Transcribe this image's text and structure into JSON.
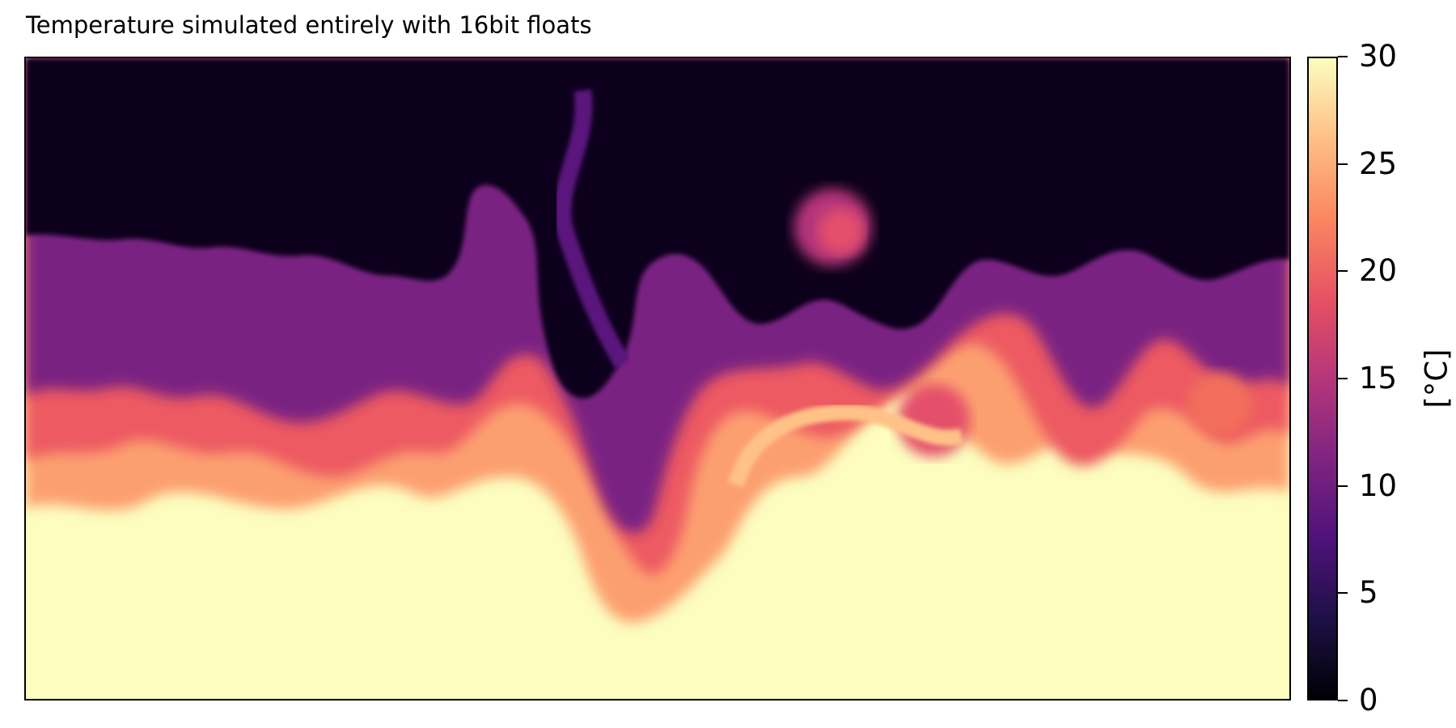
{
  "chart_data": {
    "type": "heatmap",
    "title": "Temperature simulated entirely with 16bit floats",
    "xlabel": "",
    "ylabel": "",
    "colormap": "magma",
    "colorbar": {
      "label": "[°C]",
      "min": 0,
      "max": 30,
      "ticks": [
        "0",
        "5",
        "10",
        "15",
        "20",
        "25",
        "30"
      ]
    },
    "field_description_bands": [
      "cold near-black upper layer",
      "purple/orange turbulent mixing interface",
      "warm pale-yellow lower layer"
    ],
    "colors": {
      "c0": "#000004",
      "c5": "#2c115f",
      "c10": "#721f81",
      "c15": "#b73779",
      "c20": "#f1605d",
      "c25": "#feb078",
      "c30": "#fcfdbf"
    }
  }
}
